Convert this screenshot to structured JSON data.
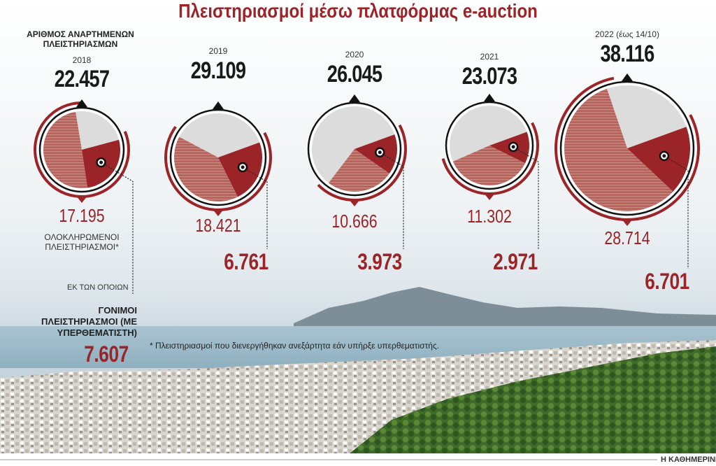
{
  "title": "Πλειστηριασμοί μέσω πλατφόρμας e-auction",
  "labels": {
    "total_label": "ΑΡΙΘΜΟΣ ΑΝΑΡΤΗΜΕΝΩΝ ΠΛΕΙΣΤΗΡΙΑΣΜΩΝ",
    "completed_label": "ΟΛΟΚΛΗΡΩΜΕΝΟΙ ΠΛΕΙΣΤΗΡΙΑΣΜΟΙ*",
    "of_which": "ΕΚ ΤΩΝ ΟΠΟΙΩΝ",
    "fruitful_label": "ΓΟΝΙΜΟΙ ΠΛΕΙΣΤΗΡΙΑΣΜΟΙ (ΜΕ ΥΠΕΡΘΕΜΑΤΙΣΤΗ)",
    "fruitful_total": "7.607"
  },
  "footnote": "* Πλειστηριασμοί που διενεργήθηκαν ανεξάρτητα εάν υπήρξε υπερθεματιστής.",
  "credit": "Η ΚΑΘΗΜΕΡΙΝΗ",
  "colors": {
    "accent": "#9b2428",
    "completed": "#b96058",
    "grey": "#dcdcdc"
  },
  "chart_data": {
    "type": "pie",
    "categories": [
      "2018",
      "2019",
      "2020",
      "2021",
      "2022 (έως 14/10)"
    ],
    "series": [
      {
        "name": "ΑΡΙΘΜΟΣ ΑΝΑΡΤΗΜΕΝΩΝ ΠΛΕΙΣΤΗΡΙΑΣΜΩΝ",
        "values": [
          22457,
          29109,
          26045,
          23073,
          38116
        ],
        "labels": [
          "22.457",
          "29.109",
          "26.045",
          "23.073",
          "38.116"
        ]
      },
      {
        "name": "ΟΛΟΚΛΗΡΩΜΕΝΟΙ ΠΛΕΙΣΤΗΡΙΑΣΜΟΙ*",
        "values": [
          17195,
          18421,
          10666,
          11302,
          28714
        ],
        "labels": [
          "17.195",
          "18.421",
          "10.666",
          "11.302",
          "28.714"
        ]
      },
      {
        "name": "ΓΟΝΙΜΟΙ ΠΛΕΙΣΤΗΡΙΑΣΜΟΙ (ΜΕ ΥΠΕΡΘΕΜΑΤΙΣΤΗ)",
        "values": [
          null,
          6761,
          3973,
          2971,
          6701
        ],
        "labels": [
          "",
          "6.761",
          "3.973",
          "2.971",
          "6.701"
        ]
      }
    ]
  }
}
